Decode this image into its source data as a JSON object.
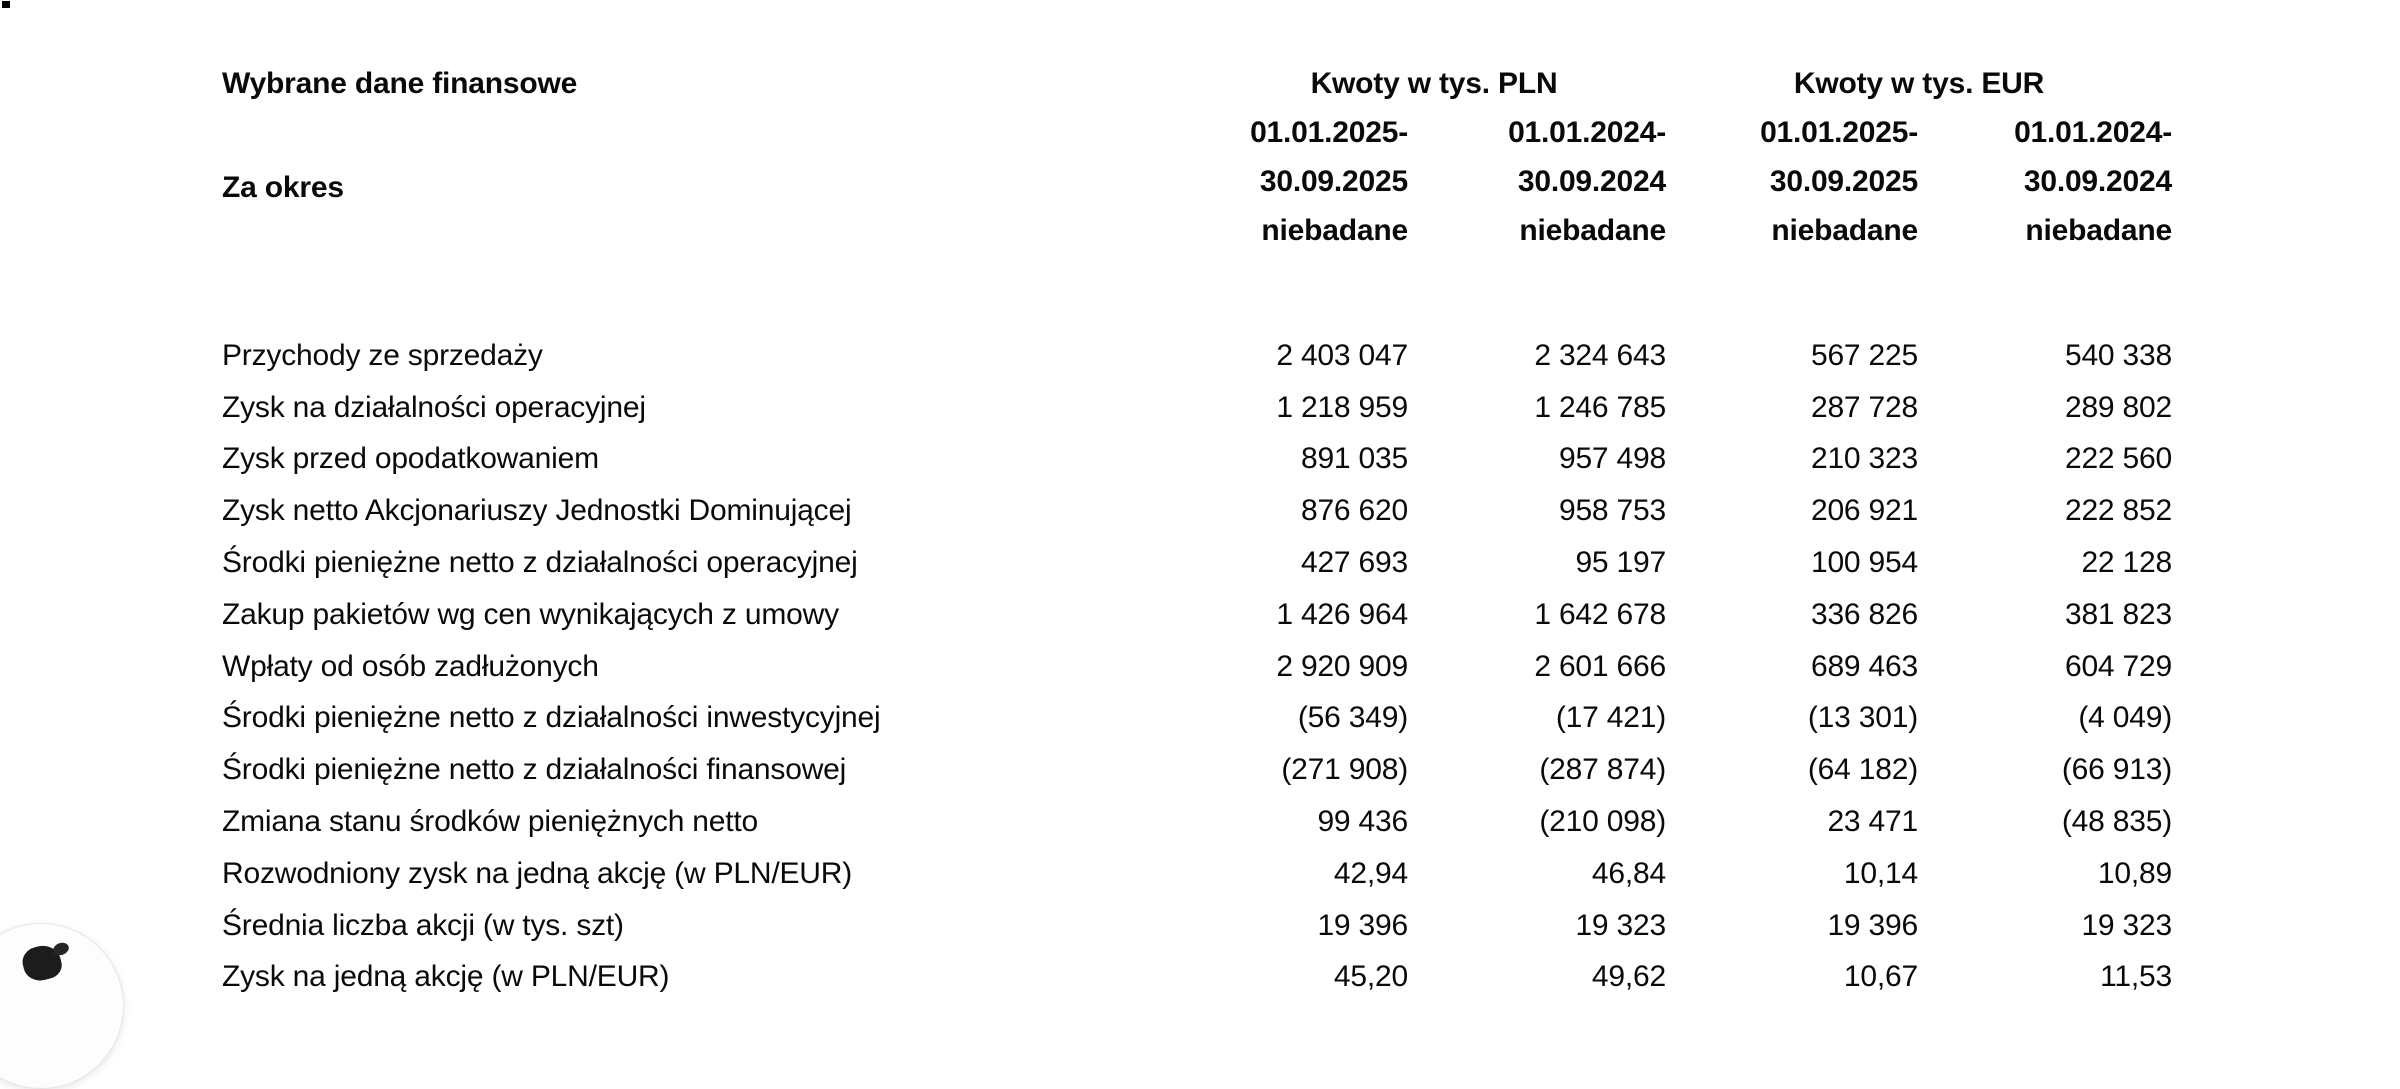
{
  "title": "Wybrane dane finansowe",
  "period_label": "Za okres",
  "groups": {
    "pln": "Kwoty w tys. PLN",
    "eur": "Kwoty w tys. EUR"
  },
  "column_headers": [
    {
      "line1": "01.01.2025-",
      "line2": "30.09.2025",
      "line3": "niebadane"
    },
    {
      "line1": "01.01.2024-",
      "line2": "30.09.2024",
      "line3": "niebadane"
    },
    {
      "line1": "01.01.2025-",
      "line2": "30.09.2025",
      "line3": "niebadane"
    },
    {
      "line1": "01.01.2024-",
      "line2": "30.09.2024",
      "line3": "niebadane"
    }
  ],
  "rows": [
    {
      "label": "Przychody ze sprzedaży",
      "values": [
        "2 403 047",
        "2 324 643",
        "567 225",
        "540 338"
      ]
    },
    {
      "label": "Zysk na działalności operacyjnej",
      "values": [
        "1 218 959",
        "1 246 785",
        "287 728",
        "289 802"
      ]
    },
    {
      "label": "Zysk przed opodatkowaniem",
      "values": [
        "891 035",
        "957 498",
        "210 323",
        "222 560"
      ]
    },
    {
      "label": "Zysk netto Akcjonariuszy Jednostki Dominującej",
      "values": [
        "876 620",
        "958 753",
        "206 921",
        "222 852"
      ]
    },
    {
      "label": "Środki pieniężne netto z działalności operacyjnej",
      "values": [
        "427 693",
        "95 197",
        "100 954",
        "22 128"
      ]
    },
    {
      "label": "Zakup pakietów wg cen wynikających z umowy",
      "values": [
        "1 426 964",
        "1 642 678",
        "336 826",
        "381 823"
      ]
    },
    {
      "label": "Wpłaty od osób zadłużonych",
      "values": [
        "2 920 909",
        "2 601 666",
        "689 463",
        "604 729"
      ]
    },
    {
      "label": "Środki pieniężne netto z działalności inwestycyjnej",
      "values": [
        "(56 349)",
        "(17 421)",
        "(13 301)",
        "(4 049)"
      ]
    },
    {
      "label": "Środki pieniężne netto z działalności finansowej",
      "values": [
        "(271 908)",
        "(287 874)",
        "(64 182)",
        "(66 913)"
      ]
    },
    {
      "label": "Zmiana stanu środków pieniężnych netto",
      "values": [
        "99 436",
        "(210 098)",
        "23 471",
        "(48 835)"
      ]
    },
    {
      "label": "Rozwodniony zysk na jedną akcję (w PLN/EUR)",
      "values": [
        "42,94",
        "46,84",
        "10,14",
        "10,89"
      ]
    },
    {
      "label": "Średnia liczba akcji (w tys. szt)",
      "values": [
        "19 396",
        "19 323",
        "19 396",
        "19 323"
      ]
    },
    {
      "label": "Zysk na jedną akcję (w PLN/EUR)",
      "values": [
        "45,20",
        "49,62",
        "10,67",
        "11,53"
      ]
    }
  ]
}
